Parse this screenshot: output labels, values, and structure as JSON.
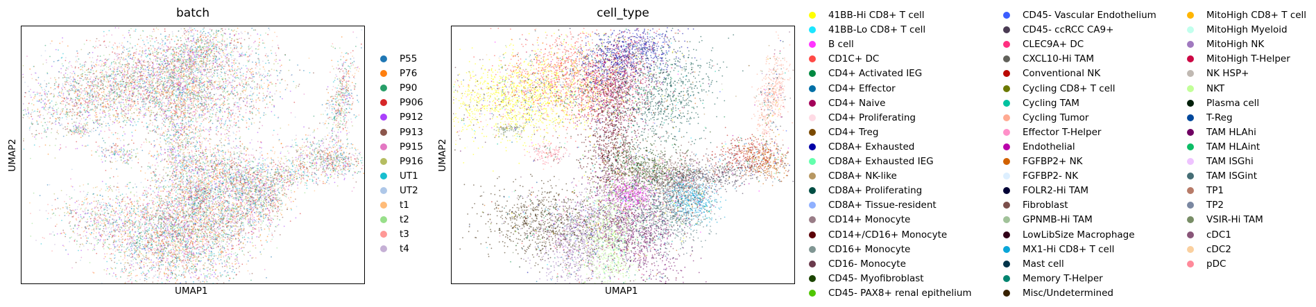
{
  "chart_data": [
    {
      "type": "scatter",
      "title": "batch",
      "xlabel": "UMAP1",
      "ylabel": "UMAP2",
      "grid": false,
      "legend_position": "right",
      "legend_columns": 1,
      "series": [
        {
          "name": "P55",
          "color": "#1f77b4"
        },
        {
          "name": "P76",
          "color": "#ff7f0e"
        },
        {
          "name": "P90",
          "color": "#279e68"
        },
        {
          "name": "P906",
          "color": "#d62728"
        },
        {
          "name": "P912",
          "color": "#aa40fc"
        },
        {
          "name": "P913",
          "color": "#8c564b"
        },
        {
          "name": "P915",
          "color": "#e377c2"
        },
        {
          "name": "P916",
          "color": "#b5bd61"
        },
        {
          "name": "UT1",
          "color": "#17becf"
        },
        {
          "name": "UT2",
          "color": "#aec7e8"
        },
        {
          "name": "t1",
          "color": "#ffbb78"
        },
        {
          "name": "t2",
          "color": "#98df8a"
        },
        {
          "name": "t3",
          "color": "#ff9896"
        },
        {
          "name": "t4",
          "color": "#c5b0d5"
        }
      ]
    },
    {
      "type": "scatter",
      "title": "cell_type",
      "xlabel": "UMAP1",
      "ylabel": "UMAP2",
      "grid": false,
      "legend_position": "right",
      "legend_columns": 3,
      "series": [
        {
          "name": "41BB-Hi CD8+ T cell",
          "color": "#ffff00"
        },
        {
          "name": "41BB-Lo CD8+ T cell",
          "color": "#1ce6ff"
        },
        {
          "name": "B cell",
          "color": "#ff34ff"
        },
        {
          "name": "CD1C+ DC",
          "color": "#ff4a46"
        },
        {
          "name": "CD4+ Activated IEG",
          "color": "#008941"
        },
        {
          "name": "CD4+ Effector",
          "color": "#006fa6"
        },
        {
          "name": "CD4+ Naive",
          "color": "#a30059"
        },
        {
          "name": "CD4+ Proliferating",
          "color": "#ffdbe5"
        },
        {
          "name": "CD4+ Treg",
          "color": "#7a4900"
        },
        {
          "name": "CD8A+ Exhausted",
          "color": "#0000a6"
        },
        {
          "name": "CD8A+ Exhausted IEG",
          "color": "#63ffac"
        },
        {
          "name": "CD8A+ NK-like",
          "color": "#b79762"
        },
        {
          "name": "CD8A+ Proliferating",
          "color": "#004d43"
        },
        {
          "name": "CD8A+ Tissue-resident",
          "color": "#8fb0ff"
        },
        {
          "name": "CD14+ Monocyte",
          "color": "#997d87"
        },
        {
          "name": "CD14+/CD16+ Monocyte",
          "color": "#5a0007"
        },
        {
          "name": "CD16+ Monocyte",
          "color": "#809693"
        },
        {
          "name": "CD16- Monocyte",
          "color": "#6a3a4c"
        },
        {
          "name": "CD45- Myofibroblast",
          "color": "#1b4400"
        },
        {
          "name": "CD45- PAX8+ renal epithelium",
          "color": "#4fc601"
        },
        {
          "name": "CD45- Vascular Endothelium",
          "color": "#3b5dff"
        },
        {
          "name": "CD45- ccRCC CA9+",
          "color": "#4a3b53"
        },
        {
          "name": "CLEC9A+ DC",
          "color": "#ff2f80"
        },
        {
          "name": "CXCL10-Hi TAM",
          "color": "#61615a"
        },
        {
          "name": "Conventional NK",
          "color": "#ba0900"
        },
        {
          "name": "Cycling CD8+ T cell",
          "color": "#6b7900"
        },
        {
          "name": "Cycling TAM",
          "color": "#00c2a0"
        },
        {
          "name": "Cycling Tumor",
          "color": "#ffaa92"
        },
        {
          "name": "Effector T-Helper",
          "color": "#ff90c9"
        },
        {
          "name": "Endothelial",
          "color": "#b903aa"
        },
        {
          "name": "FGFBP2+ NK",
          "color": "#d16100"
        },
        {
          "name": "FGFBP2- NK",
          "color": "#ddefff"
        },
        {
          "name": "FOLR2-Hi TAM",
          "color": "#000035"
        },
        {
          "name": "Fibroblast",
          "color": "#7b4f4b"
        },
        {
          "name": "GPNMB-Hi TAM",
          "color": "#a1c299"
        },
        {
          "name": "LowLibSize Macrophage",
          "color": "#300018"
        },
        {
          "name": "MX1-Hi CD8+ T cell",
          "color": "#0aa6d8"
        },
        {
          "name": "Mast cell",
          "color": "#013349"
        },
        {
          "name": "Memory T-Helper",
          "color": "#00846f"
        },
        {
          "name": "Misc/Undetermined",
          "color": "#372101"
        },
        {
          "name": "MitoHigh CD8+ T cell",
          "color": "#ffb500"
        },
        {
          "name": "MitoHigh Myeloid",
          "color": "#c2ffed"
        },
        {
          "name": "MitoHigh NK",
          "color": "#a079bf"
        },
        {
          "name": "MitoHigh T-Helper",
          "color": "#cc0744"
        },
        {
          "name": "NK HSP+",
          "color": "#c0b9b2"
        },
        {
          "name": "NKT",
          "color": "#c2ff99"
        },
        {
          "name": "Plasma cell",
          "color": "#001e09"
        },
        {
          "name": "T-Reg",
          "color": "#00489c"
        },
        {
          "name": "TAM HLAhi",
          "color": "#6f0062"
        },
        {
          "name": "TAM HLAint",
          "color": "#0cbd66"
        },
        {
          "name": "TAM ISGhi",
          "color": "#eec3ff"
        },
        {
          "name": "TAM ISGint",
          "color": "#456d75"
        },
        {
          "name": "TP1",
          "color": "#b77b68"
        },
        {
          "name": "TP2",
          "color": "#7a87a1"
        },
        {
          "name": "VSIR-Hi TAM",
          "color": "#788d66"
        },
        {
          "name": "cDC1",
          "color": "#885578"
        },
        {
          "name": "cDC2",
          "color": "#fad09f"
        },
        {
          "name": "pDC",
          "color": "#ff8a9a"
        }
      ]
    }
  ]
}
